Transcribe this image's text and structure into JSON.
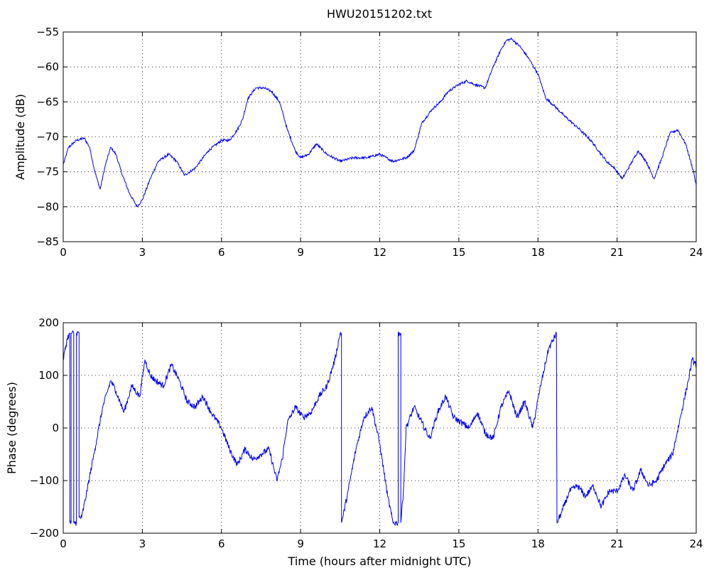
{
  "figure": {
    "title": "HWU20151202.txt",
    "line_color": "#0000ff",
    "background": "#ffffff"
  },
  "chart_data": [
    {
      "type": "line",
      "title": "HWU20151202.txt",
      "xlabel": "",
      "ylabel": "Amplitude (dB)",
      "xlim": [
        0,
        24
      ],
      "ylim": [
        -85,
        -55
      ],
      "xticks": [
        "0",
        "3",
        "6",
        "9",
        "12",
        "15",
        "18",
        "21",
        "24"
      ],
      "yticks": [
        "-85",
        "-80",
        "-75",
        "-70",
        "-65",
        "-60",
        "-55"
      ],
      "grid": true,
      "series": [
        {
          "color": "#0000ff",
          "x": [
            0,
            0.2,
            0.5,
            0.8,
            1.0,
            1.2,
            1.4,
            1.6,
            1.8,
            2.0,
            2.2,
            2.5,
            2.8,
            3.0,
            3.3,
            3.6,
            4.0,
            4.3,
            4.6,
            5.0,
            5.5,
            6.0,
            6.3,
            6.6,
            6.8,
            7.0,
            7.3,
            7.6,
            7.9,
            8.2,
            8.5,
            8.8,
            9.0,
            9.3,
            9.6,
            10.0,
            10.5,
            11.0,
            11.5,
            12.0,
            12.5,
            13.0,
            13.3,
            13.6,
            14.0,
            14.3,
            14.6,
            15.0,
            15.3,
            15.6,
            16.0,
            16.3,
            16.6,
            16.8,
            17.0,
            17.3,
            17.6,
            18.0,
            18.3,
            18.6,
            19.0,
            19.3,
            19.6,
            20.0,
            20.3,
            20.6,
            20.9,
            21.2,
            21.5,
            21.8,
            22.1,
            22.4,
            22.7,
            23.0,
            23.3,
            23.6,
            23.9,
            24.0
          ],
          "y": [
            -74,
            -71.5,
            -70.5,
            -70.2,
            -71.5,
            -75,
            -77.5,
            -74,
            -71.5,
            -72.5,
            -75,
            -78,
            -80,
            -79,
            -76,
            -73.5,
            -72.5,
            -73.5,
            -75.5,
            -74.5,
            -72,
            -70.5,
            -70.5,
            -69,
            -67.5,
            -64.5,
            -63,
            -63,
            -63.5,
            -65,
            -69,
            -72,
            -73,
            -72.5,
            -71,
            -72.5,
            -73.5,
            -73,
            -73,
            -72.5,
            -73.5,
            -73,
            -72,
            -68,
            -66,
            -65,
            -63.5,
            -62.5,
            -62,
            -62.5,
            -63,
            -60,
            -57.5,
            -56.2,
            -56,
            -57,
            -58.5,
            -61,
            -64.5,
            -65.5,
            -67,
            -68,
            -69,
            -70.5,
            -72,
            -73.5,
            -74.5,
            -76,
            -74,
            -72,
            -73.5,
            -76,
            -73,
            -69.5,
            -69,
            -71,
            -75,
            -77
          ]
        }
      ]
    },
    {
      "type": "line",
      "title": "",
      "xlabel": "Time (hours after midnight UTC)",
      "ylabel": "Phase (degrees)",
      "xlim": [
        0,
        24
      ],
      "ylim": [
        -200,
        200
      ],
      "xticks": [
        "0",
        "3",
        "6",
        "9",
        "12",
        "15",
        "18",
        "21",
        "24"
      ],
      "yticks": [
        "-200",
        "-100",
        "0",
        "100",
        "200"
      ],
      "grid": true,
      "series": [
        {
          "color": "#0000ff",
          "x": [
            0,
            0.15,
            0.25,
            0.25,
            0.3,
            0.3,
            0.4,
            0.4,
            0.5,
            0.5,
            0.6,
            0.6,
            0.7,
            0.9,
            1.2,
            1.5,
            1.8,
            2.0,
            2.3,
            2.6,
            2.9,
            3.1,
            3.3,
            3.5,
            3.8,
            4.1,
            4.4,
            4.7,
            5.0,
            5.3,
            5.6,
            6.0,
            6.3,
            6.6,
            6.9,
            7.2,
            7.5,
            7.8,
            8.1,
            8.3,
            8.5,
            8.8,
            9.1,
            9.4,
            9.7,
            10.0,
            10.3,
            10.5,
            10.55,
            10.55,
            10.6,
            10.8,
            11.1,
            11.4,
            11.7,
            12.0,
            12.3,
            12.5,
            12.7,
            12.7,
            12.75,
            12.8,
            12.8,
            12.9,
            13.0,
            13.3,
            13.6,
            13.9,
            14.2,
            14.5,
            14.8,
            15.1,
            15.4,
            15.7,
            16.0,
            16.3,
            16.6,
            16.9,
            17.2,
            17.5,
            17.8,
            18.1,
            18.4,
            18.7,
            18.72,
            18.9,
            19.2,
            19.5,
            19.8,
            20.1,
            20.4,
            20.7,
            21.0,
            21.3,
            21.6,
            21.9,
            22.2,
            22.5,
            22.8,
            23.1,
            23.4,
            23.7,
            23.85,
            24.0
          ],
          "y": [
            130,
            170,
            180,
            -180,
            -180,
            180,
            180,
            -180,
            -180,
            180,
            180,
            -170,
            -170,
            -120,
            -40,
            40,
            90,
            70,
            30,
            80,
            60,
            130,
            100,
            90,
            80,
            120,
            90,
            50,
            40,
            60,
            30,
            0,
            -40,
            -70,
            -40,
            -60,
            -50,
            -40,
            -100,
            -60,
            10,
            40,
            20,
            30,
            60,
            80,
            130,
            180,
            180,
            -180,
            -170,
            -120,
            -40,
            20,
            40,
            -30,
            -130,
            -180,
            -180,
            180,
            180,
            180,
            -180,
            -120,
            0,
            40,
            10,
            -20,
            30,
            60,
            20,
            10,
            0,
            30,
            -10,
            -20,
            40,
            70,
            20,
            50,
            0,
            80,
            150,
            180,
            -180,
            -160,
            -120,
            -110,
            -130,
            -110,
            -150,
            -120,
            -120,
            -90,
            -120,
            -80,
            -110,
            -100,
            -70,
            -50,
            20,
            90,
            130,
            120
          ]
        }
      ]
    }
  ]
}
